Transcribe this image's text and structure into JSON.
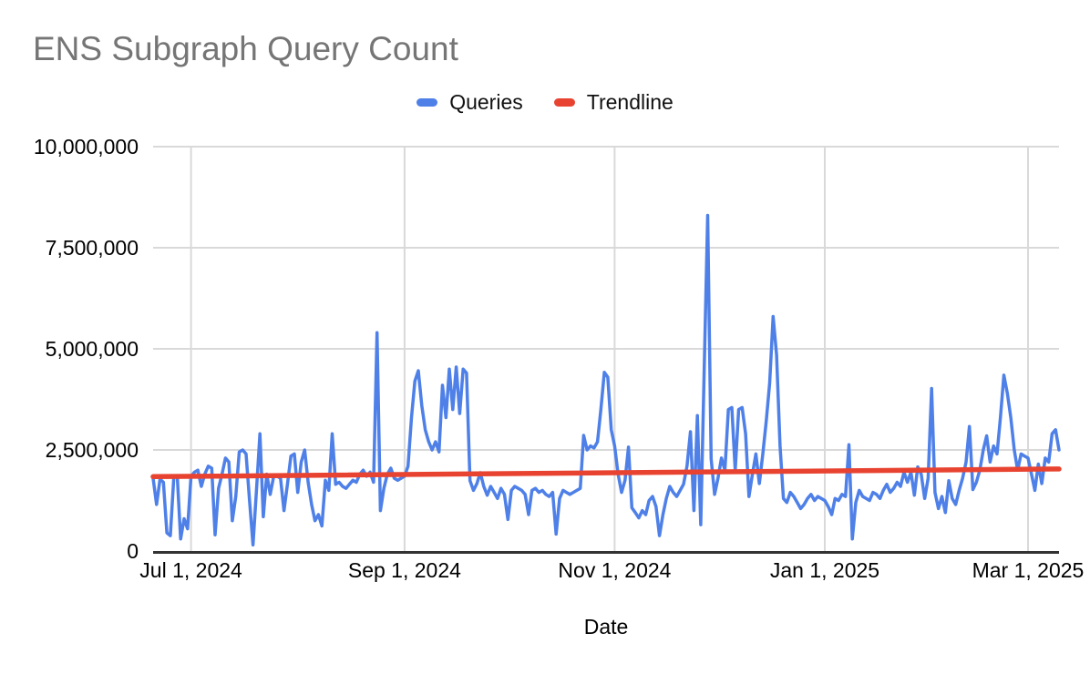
{
  "chart_data": {
    "type": "line",
    "title": "ENS Subgraph Query Count",
    "xlabel": "Date",
    "ylabel": "",
    "grid": true,
    "legend_position": "top-center",
    "background_color": "#ffffff",
    "gridline_color": "#d9d9d9",
    "axis_line_color": "#333333",
    "title_color": "#757575",
    "tick_label_color": "#000000",
    "y_axis": {
      "min": 0,
      "max": 10000000,
      "tick_interval": 2500000,
      "tick_labels": [
        "0",
        "2,500,000",
        "5,000,000",
        "7,500,000",
        "10,000,000"
      ]
    },
    "x_axis": {
      "start_date": "2024-06-20",
      "end_date": "2025-03-10",
      "frequency": "daily",
      "ticks": [
        {
          "date": "2024-07-01",
          "label": "Jul 1, 2024"
        },
        {
          "date": "2024-09-01",
          "label": "Sep 1, 2024"
        },
        {
          "date": "2024-11-01",
          "label": "Nov 1, 2024"
        },
        {
          "date": "2025-01-01",
          "label": "Jan 1, 2025"
        },
        {
          "date": "2025-03-01",
          "label": "Mar 1, 2025"
        }
      ]
    },
    "series": [
      {
        "name": "Queries",
        "color": "#4e80e8",
        "line_width": 3.5,
        "values": [
          1800000,
          1150000,
          1780000,
          1700000,
          450000,
          380000,
          1820000,
          1850000,
          300000,
          800000,
          550000,
          1850000,
          1950000,
          2000000,
          1600000,
          1900000,
          2100000,
          2050000,
          400000,
          1550000,
          1900000,
          2300000,
          2200000,
          750000,
          1350000,
          2450000,
          2500000,
          2400000,
          1250000,
          150000,
          1500000,
          2900000,
          850000,
          1900000,
          1400000,
          1850000,
          1850000,
          1800000,
          1000000,
          1650000,
          2350000,
          2400000,
          1450000,
          2200000,
          2500000,
          1700000,
          1150000,
          750000,
          900000,
          620000,
          1750000,
          1500000,
          2900000,
          1650000,
          1700000,
          1600000,
          1550000,
          1650000,
          1750000,
          1700000,
          1900000,
          2000000,
          1850000,
          1950000,
          1700000,
          5400000,
          1000000,
          1550000,
          1900000,
          2050000,
          1800000,
          1750000,
          1800000,
          1850000,
          2100000,
          3300000,
          4200000,
          4460000,
          3600000,
          3000000,
          2700000,
          2500000,
          2700000,
          2450000,
          4100000,
          3300000,
          4500000,
          3500000,
          4550000,
          3400000,
          4500000,
          4400000,
          1740000,
          1500000,
          1670000,
          1940000,
          1600000,
          1380000,
          1600000,
          1450000,
          1300000,
          1550000,
          1400000,
          780000,
          1500000,
          1600000,
          1550000,
          1500000,
          1400000,
          900000,
          1500000,
          1550000,
          1450000,
          1500000,
          1400000,
          1350000,
          1450000,
          420000,
          1300000,
          1500000,
          1450000,
          1400000,
          1450000,
          1500000,
          1550000,
          2860000,
          2500000,
          2600000,
          2550000,
          2700000,
          3500000,
          4420000,
          4300000,
          3000000,
          2600000,
          1900000,
          1450000,
          1750000,
          2570000,
          1070000,
          950000,
          820000,
          1000000,
          900000,
          1250000,
          1350000,
          1100000,
          380000,
          900000,
          1300000,
          1600000,
          1450000,
          1350000,
          1500000,
          1650000,
          2100000,
          2950000,
          1000000,
          3350000,
          650000,
          4500000,
          8300000,
          2280000,
          1400000,
          1800000,
          2300000,
          2000000,
          3500000,
          3550000,
          2000000,
          3500000,
          3550000,
          2900000,
          1350000,
          1900000,
          2400000,
          1670000,
          2400000,
          3200000,
          4150000,
          5800000,
          4850000,
          2600000,
          1300000,
          1200000,
          1450000,
          1350000,
          1200000,
          1050000,
          1150000,
          1300000,
          1400000,
          1250000,
          1350000,
          1300000,
          1250000,
          1100000,
          900000,
          1300000,
          1250000,
          1400000,
          1350000,
          2630000,
          300000,
          1200000,
          1500000,
          1350000,
          1300000,
          1250000,
          1450000,
          1400000,
          1300000,
          1500000,
          1650000,
          1450000,
          1550000,
          1700000,
          1600000,
          1950000,
          1700000,
          1950000,
          1380000,
          2080000,
          1900000,
          1300000,
          1800000,
          4020000,
          1450000,
          1050000,
          1350000,
          950000,
          1740000,
          1300000,
          1150000,
          1500000,
          1800000,
          2200000,
          3080000,
          1520000,
          1700000,
          2000000,
          2500000,
          2850000,
          2200000,
          2600000,
          2400000,
          3300000,
          4350000,
          3900000,
          3300000,
          2500000,
          2000000,
          2400000,
          2350000,
          2300000,
          1900000,
          1500000,
          2150000,
          1670000,
          2300000,
          2200000,
          2900000,
          3000000,
          2500000
        ]
      },
      {
        "name": "Trendline",
        "color": "#e84330",
        "line_width": 5.5,
        "trend": {
          "start_value": 1840000,
          "end_value": 2030000
        }
      }
    ]
  }
}
